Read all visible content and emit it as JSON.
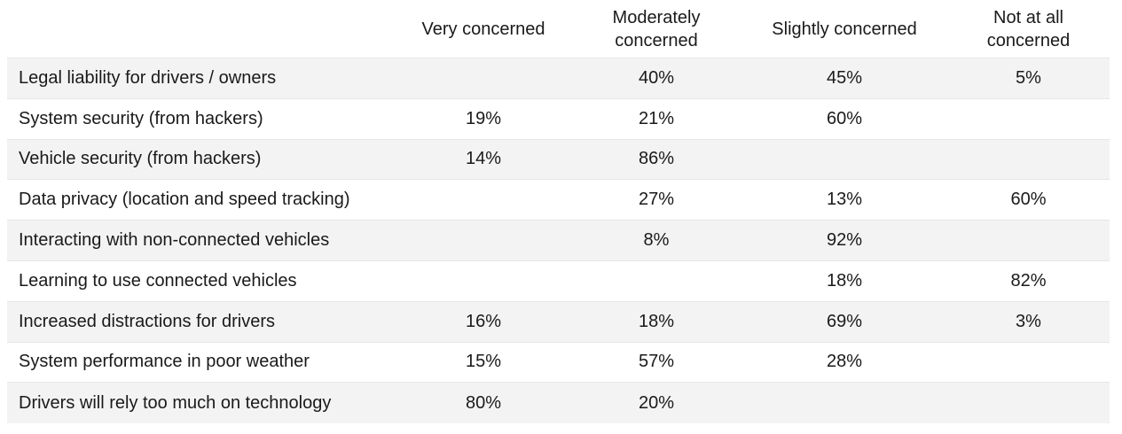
{
  "chart_data": {
    "type": "table",
    "columns": [
      "",
      "Very concerned",
      "Moderately concerned",
      "Slightly concerned",
      "Not at all concerned"
    ],
    "header_lines": [
      [
        ""
      ],
      [
        "Very concerned"
      ],
      [
        "Moderately",
        "concerned"
      ],
      [
        "Slightly concerned"
      ],
      [
        "Not at all",
        "concerned"
      ]
    ],
    "rows": [
      {
        "label": "Legal liability for drivers / owners",
        "values": [
          "",
          "40%",
          "45%",
          "5%"
        ]
      },
      {
        "label": "System security (from hackers)",
        "values": [
          "19%",
          "21%",
          "60%",
          ""
        ]
      },
      {
        "label": "Vehicle security (from hackers)",
        "values": [
          "14%",
          "86%",
          "",
          ""
        ]
      },
      {
        "label": "Data privacy (location and speed tracking)",
        "values": [
          "",
          "27%",
          "13%",
          "60%"
        ]
      },
      {
        "label": "Interacting with non-connected vehicles",
        "values": [
          "",
          "8%",
          "92%",
          ""
        ]
      },
      {
        "label": "Learning to use connected vehicles",
        "values": [
          "",
          "",
          "18%",
          "82%"
        ]
      },
      {
        "label": "Increased distractions for drivers",
        "values": [
          "16%",
          "18%",
          "69%",
          "3%"
        ]
      },
      {
        "label": "System performance in poor weather",
        "values": [
          "15%",
          "57%",
          "28%",
          ""
        ]
      },
      {
        "label": "Drivers will rely too much on technology",
        "values": [
          "80%",
          "20%",
          "",
          ""
        ]
      }
    ],
    "colors": {
      "shaded_row": "#f3f3f3",
      "row_divider": "#e6e6e6",
      "text": "#1a1a1a"
    }
  }
}
